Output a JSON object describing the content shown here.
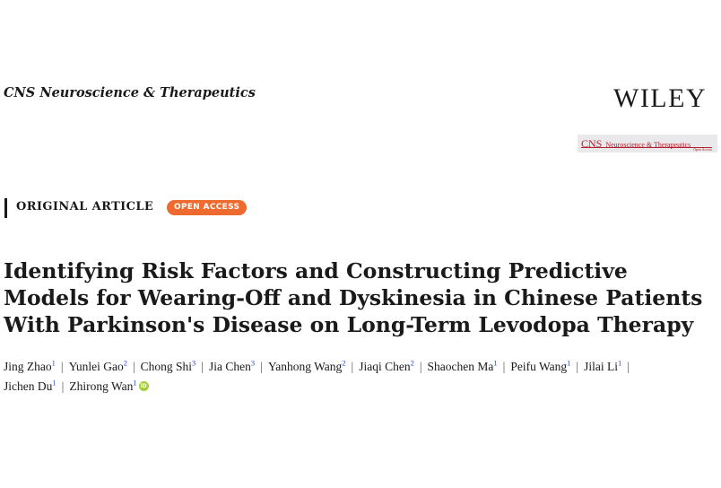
{
  "header": {
    "journal_name": "CNS Neuroscience & Therapeutics",
    "publisher": "WILEY",
    "badge": {
      "text_big": "CNS",
      "text_small": "Neuroscience & Therapeutics",
      "open_access": "Open Access"
    }
  },
  "article": {
    "type": "ORIGINAL ARTICLE",
    "access_badge": "OPEN ACCESS",
    "title_lines": [
      "Identifying Risk Factors and Constructing Predictive",
      "Models for Wearing-Off and Dyskinesia in Chinese Patients",
      "With Parkinson's Disease on Long-Term Levodopa Therapy"
    ]
  },
  "authors": {
    "line1": [
      {
        "name": "Jing Zhao",
        "aff": "1"
      },
      {
        "name": "Yunlei Gao",
        "aff": "2"
      },
      {
        "name": "Chong Shi",
        "aff": "3"
      },
      {
        "name": "Jia Chen",
        "aff": "3"
      },
      {
        "name": "Yanhong Wang",
        "aff": "2"
      },
      {
        "name": "Jiaqi Chen",
        "aff": "2"
      },
      {
        "name": "Shaochen Ma",
        "aff": "1"
      },
      {
        "name": "Peifu Wang",
        "aff": "1"
      },
      {
        "name": "Jilai Li",
        "aff": "1"
      }
    ],
    "line2": [
      {
        "name": "Jichen Du",
        "aff": "1"
      },
      {
        "name": "Zhirong Wan",
        "aff": "1"
      }
    ],
    "orcid_icon": "orcid-icon",
    "separator": "|"
  },
  "colors": {
    "open_access_badge": "#ee6a2e",
    "journal_badge_text": "#b5202e",
    "affiliation_sup": "#2a47c9",
    "orcid": "#a6ce39"
  }
}
